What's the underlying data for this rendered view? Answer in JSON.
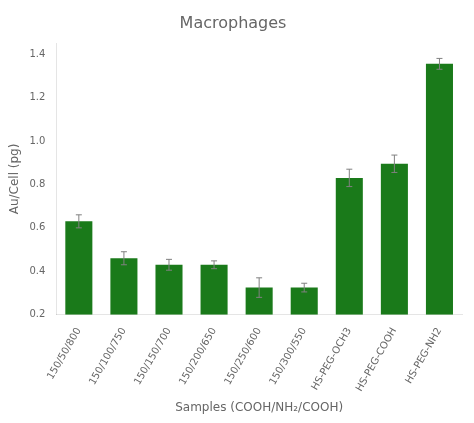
{
  "chart_data": {
    "type": "bar",
    "title": "Macrophages",
    "xlabel": "Samples (COOH/NH₂/COOH)",
    "ylabel": "Au/Cell (pg)",
    "categories": [
      "150/50/800",
      "150/100/750",
      "150/150/700",
      "150/200/650",
      "150/250/600",
      "150/300/550",
      "HS-PEG-OCH3",
      "HS-PEG-COOH",
      "HS-PEG-NH2"
    ],
    "values": [
      0.63,
      0.46,
      0.43,
      0.43,
      0.325,
      0.325,
      0.83,
      0.895,
      1.355
    ],
    "errors": [
      0.03,
      0.03,
      0.025,
      0.018,
      0.045,
      0.02,
      0.04,
      0.04,
      0.025
    ],
    "color": "#1a7a1a",
    "ylim": [
      0.2,
      1.45
    ],
    "yticks": [
      0.2,
      0.4,
      0.6,
      0.8,
      {
        "value": 1,
        "label": "1.0"
      },
      1.2,
      1.4
    ],
    "grid": false
  }
}
